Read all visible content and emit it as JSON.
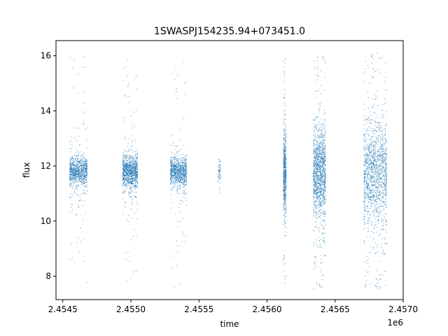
{
  "chart_data": {
    "type": "scatter",
    "title": "1SWASPJ154235.94+073451.0",
    "xlabel": "time",
    "ylabel": "flux",
    "x_offset_label": "1e6",
    "xlim": [
      2.45445,
      2.457
    ],
    "ylim": [
      7.15,
      16.55
    ],
    "x_ticks": [
      2.4545,
      2.455,
      2.4555,
      2.456,
      2.4565,
      2.457
    ],
    "x_tick_labels": [
      "2.4545",
      "2.4550",
      "2.4555",
      "2.4560",
      "2.4565",
      "2.4570"
    ],
    "y_ticks": [
      8,
      10,
      12,
      14,
      16
    ],
    "y_tick_labels": [
      "8",
      "10",
      "12",
      "14",
      "16"
    ],
    "grid": false,
    "marker_color": "#1f77b4",
    "series": [
      {
        "clusters": [
          {
            "x_start": 2.45455,
            "x_end": 2.45468,
            "y_center": 11.8,
            "y_spread": 0.35,
            "y_min": 7.7,
            "y_max": 16.1,
            "count": 900
          },
          {
            "x_start": 2.45494,
            "x_end": 2.45505,
            "y_center": 11.8,
            "y_spread": 0.4,
            "y_min": 7.8,
            "y_max": 16.1,
            "count": 1000
          },
          {
            "x_start": 2.45529,
            "x_end": 2.45541,
            "y_center": 11.8,
            "y_spread": 0.35,
            "y_min": 7.6,
            "y_max": 15.9,
            "count": 900
          },
          {
            "x_start": 2.45564,
            "x_end": 2.45566,
            "y_center": 11.8,
            "y_spread": 0.3,
            "y_min": 11.0,
            "y_max": 13.6,
            "count": 60
          },
          {
            "x_start": 2.45612,
            "x_end": 2.45614,
            "y_center": 11.8,
            "y_spread": 1.0,
            "y_min": 7.6,
            "y_max": 16.1,
            "count": 600
          },
          {
            "x_start": 2.45634,
            "x_end": 2.45643,
            "y_center": 11.8,
            "y_spread": 1.1,
            "y_min": 7.5,
            "y_max": 16.1,
            "count": 1300
          },
          {
            "x_start": 2.45671,
            "x_end": 2.45688,
            "y_center": 11.8,
            "y_spread": 1.3,
            "y_min": 7.5,
            "y_max": 16.1,
            "count": 1500
          }
        ]
      }
    ]
  }
}
